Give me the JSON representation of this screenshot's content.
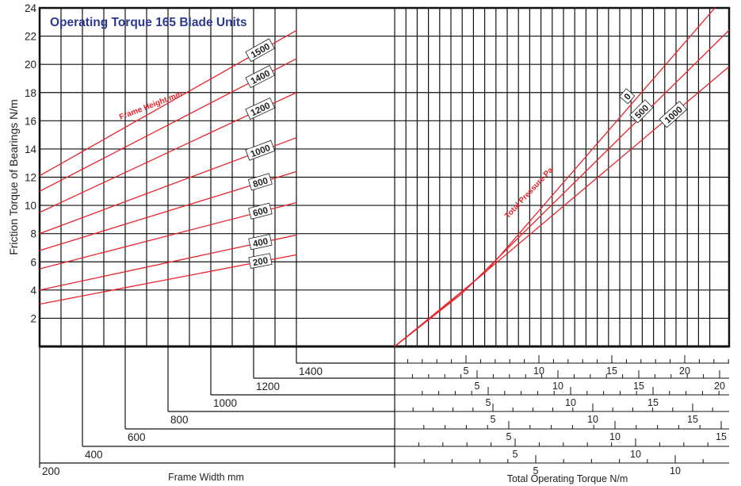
{
  "colors": {
    "curve": "#e8242b",
    "title": "#2b3990",
    "grid": "#111111"
  },
  "chart_data": {
    "type": "line",
    "title": "Operating Torque 165 Blade Units",
    "ylabel": "Friction Torque of Bearings N/m",
    "ylim": [
      0,
      24
    ],
    "yticks": [
      2,
      4,
      6,
      8,
      10,
      12,
      14,
      16,
      18,
      20,
      22,
      24
    ],
    "left_panel": {
      "xlabel": "Frame Width mm",
      "family_label": "Frame Height mm",
      "width_labels": [
        "200",
        "400",
        "600",
        "800",
        "1000",
        "1200",
        "1400"
      ],
      "series": [
        {
          "name": "200",
          "y_at_200mm": 3.0,
          "y_at_1400mm": 6.5
        },
        {
          "name": "400",
          "y_at_200mm": 4.0,
          "y_at_1400mm": 7.9
        },
        {
          "name": "600",
          "y_at_200mm": 5.5,
          "y_at_1400mm": 10.2
        },
        {
          "name": "800",
          "y_at_200mm": 6.8,
          "y_at_1400mm": 12.4
        },
        {
          "name": "1000",
          "y_at_200mm": 8.0,
          "y_at_1400mm": 14.8
        },
        {
          "name": "1200",
          "y_at_200mm": 9.5,
          "y_at_1400mm": 18.0
        },
        {
          "name": "1400",
          "y_at_200mm": 11.0,
          "y_at_1400mm": 20.4
        },
        {
          "name": "1500",
          "y_at_200mm": 12.1,
          "y_at_1400mm": 22.4
        }
      ]
    },
    "right_panel": {
      "xlabel": "Total Operating Torque N/m",
      "family_label": "Total Pressure Pa",
      "series": [
        {
          "name": "0"
        },
        {
          "name": "500"
        },
        {
          "name": "1000"
        }
      ],
      "scales": [
        {
          "frame_width": "1400",
          "labels": [
            "5",
            "10",
            "15",
            "20"
          ]
        },
        {
          "frame_width": "1200",
          "labels": [
            "5",
            "10",
            "15",
            "20"
          ]
        },
        {
          "frame_width": "1000",
          "labels": [
            "5",
            "10",
            "15"
          ]
        },
        {
          "frame_width": "800",
          "labels": [
            "5",
            "10",
            "15"
          ]
        },
        {
          "frame_width": "600",
          "labels": [
            "5",
            "10",
            "15"
          ]
        },
        {
          "frame_width": "400",
          "labels": [
            "5",
            "10"
          ]
        },
        {
          "frame_width": "200",
          "labels": [
            "5",
            "10"
          ]
        }
      ]
    }
  }
}
